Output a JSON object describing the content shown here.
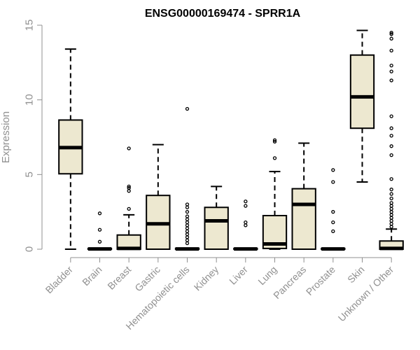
{
  "chart_data": {
    "type": "boxplot",
    "title": "ENSG00000169474 - SPRR1A",
    "xlabel": "",
    "ylabel": "Expression",
    "ylim": [
      0,
      15
    ],
    "yticks": [
      "0",
      "5",
      "10",
      "15"
    ],
    "box_fill": "#ede8d0",
    "box_stroke": "#000000",
    "axis_color": "#909090",
    "categories": [
      "Bladder",
      "Brain",
      "Breast",
      "Gastric",
      "Hematopoietic cells",
      "Kidney",
      "Liver",
      "Lung",
      "Pancreas",
      "Prostate",
      "Skin",
      "Unknown / Other"
    ],
    "boxes": [
      {
        "name": "Bladder",
        "min": 0,
        "q1": 5.05,
        "median": 6.8,
        "q3": 8.65,
        "max": 13.4,
        "outliers": []
      },
      {
        "name": "Brain",
        "min": 0,
        "q1": 0,
        "median": 0.02,
        "q3": 0.05,
        "max": 0.05,
        "outliers": [
          0.5,
          1.3,
          2.4
        ]
      },
      {
        "name": "Breast",
        "min": 0,
        "q1": 0,
        "median": 0.05,
        "q3": 0.95,
        "max": 2.3,
        "outliers": [
          2.7,
          3.9,
          4.1,
          4.2,
          6.75
        ]
      },
      {
        "name": "Gastric",
        "min": 0,
        "q1": 0,
        "median": 1.7,
        "q3": 3.6,
        "max": 7.0,
        "outliers": []
      },
      {
        "name": "Hematopoietic cells",
        "min": 0,
        "q1": 0,
        "median": 0.02,
        "q3": 0.06,
        "max": 0.06,
        "outliers": [
          0.4,
          0.6,
          0.8,
          1.0,
          1.2,
          1.4,
          1.6,
          1.8,
          2.0,
          2.2,
          2.5,
          2.8,
          3.0,
          9.4
        ]
      },
      {
        "name": "Kidney",
        "min": 0,
        "q1": 0,
        "median": 1.9,
        "q3": 2.8,
        "max": 4.2,
        "outliers": []
      },
      {
        "name": "Liver",
        "min": 0,
        "q1": 0,
        "median": 0.02,
        "q3": 0.05,
        "max": 0.05,
        "outliers": [
          1.6,
          1.8,
          2.9,
          3.2
        ]
      },
      {
        "name": "Lung",
        "min": 0,
        "q1": 0.05,
        "median": 0.35,
        "q3": 2.25,
        "max": 5.2,
        "outliers": [
          6.1,
          7.2,
          7.3
        ]
      },
      {
        "name": "Pancreas",
        "min": 0,
        "q1": 0,
        "median": 3.0,
        "q3": 4.05,
        "max": 7.1,
        "outliers": []
      },
      {
        "name": "Prostate",
        "min": 0,
        "q1": 0,
        "median": 0.02,
        "q3": 0.05,
        "max": 0.05,
        "outliers": [
          1.2,
          1.8,
          2.5,
          4.5,
          5.3
        ]
      },
      {
        "name": "Skin",
        "min": 4.5,
        "q1": 8.1,
        "median": 10.2,
        "q3": 13.0,
        "max": 14.65,
        "outliers": []
      },
      {
        "name": "Unknown / Other",
        "min": 0,
        "q1": 0,
        "median": 0.05,
        "q3": 0.55,
        "max": 1.35,
        "outliers": [
          1.5,
          1.7,
          1.9,
          2.1,
          2.3,
          2.5,
          2.7,
          2.9,
          3.1,
          3.4,
          3.7,
          4.0,
          4.7,
          6.3,
          6.9,
          7.6,
          8.1,
          8.9,
          11.3,
          11.9,
          12.3,
          13.3,
          14.1,
          14.4,
          14.5
        ]
      }
    ]
  }
}
